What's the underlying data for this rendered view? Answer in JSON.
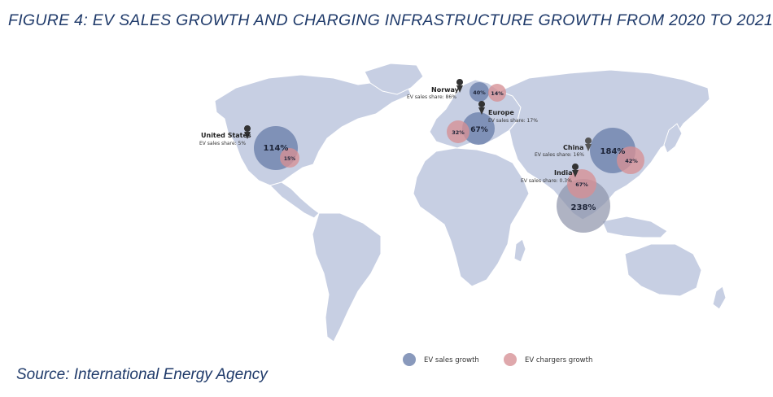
{
  "title": "FIGURE 4: EV SALES GROWTH AND CHARGING INFRASTRUCTURE GROWTH FROM 2020 TO 2021",
  "source": "Source: International Energy Agency",
  "legend": {
    "sales_label": "EV sales growth",
    "chargers_label": "EV chargers growth"
  },
  "colors": {
    "sales": "#6f82ad",
    "chargers": "#d68f95",
    "land": "#c7cfe3",
    "title": "#1f3a6a"
  },
  "regions": {
    "us": {
      "name": "United States",
      "share": "EV sales share: 5%",
      "sales_growth": "114%",
      "chargers_growth": "15%"
    },
    "norway": {
      "name": "Norway",
      "share": "EV sales share: 86%",
      "sales_growth": "40%",
      "chargers_growth": "14%"
    },
    "europe": {
      "name": "Europe",
      "share": "EV sales share: 17%",
      "sales_growth": "67%",
      "chargers_growth": "32%"
    },
    "china": {
      "name": "China",
      "share": "EV sales share: 16%",
      "sales_growth": "184%",
      "chargers_growth": "42%"
    },
    "india": {
      "name": "India",
      "share": "EV sales share: 0.3%",
      "sales_growth": "238%",
      "chargers_growth": "67%"
    }
  },
  "icons": {
    "marker": "map-pin-icon"
  }
}
